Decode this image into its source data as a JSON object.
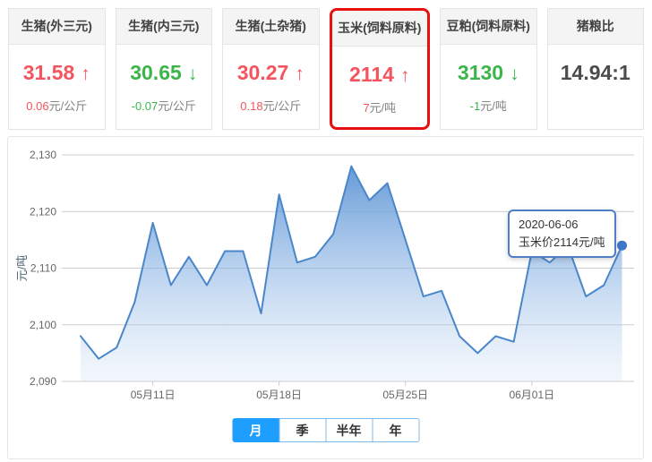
{
  "colors": {
    "up": "#f4545e",
    "down": "#3bb54a",
    "neutral": "#4c4c4c",
    "highlight_border": "#e8100c",
    "tab_active": "#1e9fff",
    "tab_border": "#7cb9e8",
    "chart_line": "#4a86ca",
    "chart_dot": "#3f78cb",
    "tooltip_border": "#4d7ec6",
    "grid_line": "#cccccc",
    "axis_text": "#666666",
    "y_axis_title_color": "#4e6470"
  },
  "cards": [
    {
      "key": "pig-outer-ternary",
      "title": "生猪(外三元)",
      "value": "31.58",
      "arrow": "↑",
      "trend": "up",
      "change": "0.06",
      "unit": "元/公斤",
      "highlighted": false
    },
    {
      "key": "pig-inner-ternary",
      "title": "生猪(内三元)",
      "value": "30.65",
      "arrow": "↓",
      "trend": "down",
      "change": "-0.07",
      "unit": "元/公斤",
      "highlighted": false
    },
    {
      "key": "pig-hybrid",
      "title": "生猪(土杂猪)",
      "value": "30.27",
      "arrow": "↑",
      "trend": "up",
      "change": "0.18",
      "unit": "元/公斤",
      "highlighted": false
    },
    {
      "key": "corn-feed",
      "title": "玉米(饲料原料)",
      "value": "2114",
      "arrow": "↑",
      "trend": "up",
      "change": "7",
      "unit": "元/吨",
      "highlighted": true
    },
    {
      "key": "soybean-meal-feed",
      "title": "豆粕(饲料原料)",
      "value": "3130",
      "arrow": "↓",
      "trend": "down",
      "change": "-1",
      "unit": "元/吨",
      "highlighted": false
    },
    {
      "key": "pig-grain-ratio",
      "title": "猪粮比",
      "value": "14.94:1",
      "arrow": "",
      "trend": "none",
      "change": "",
      "unit": "",
      "highlighted": false
    }
  ],
  "chart_data": {
    "type": "area",
    "series_name": "玉米价",
    "ylabel": "元/吨",
    "ylim": [
      2090,
      2130
    ],
    "yticks": [
      2090,
      2100,
      2110,
      2120,
      2130
    ],
    "grid": true,
    "legend": false,
    "x_tick_labels": [
      "05月11日",
      "05月18日",
      "05月25日",
      "06月01日"
    ],
    "x_tick_indices": [
      4,
      11,
      18,
      25
    ],
    "dates": [
      "2020-05-07",
      "2020-05-08",
      "2020-05-09",
      "2020-05-10",
      "2020-05-11",
      "2020-05-12",
      "2020-05-13",
      "2020-05-14",
      "2020-05-15",
      "2020-05-16",
      "2020-05-17",
      "2020-05-18",
      "2020-05-19",
      "2020-05-20",
      "2020-05-21",
      "2020-05-22",
      "2020-05-23",
      "2020-05-24",
      "2020-05-25",
      "2020-05-26",
      "2020-05-27",
      "2020-05-28",
      "2020-05-29",
      "2020-05-30",
      "2020-05-31",
      "2020-06-01",
      "2020-06-02",
      "2020-06-03",
      "2020-06-04",
      "2020-06-05",
      "2020-06-06"
    ],
    "values": [
      2098,
      2094,
      2096,
      2104,
      2118,
      2107,
      2112,
      2107,
      2113,
      2113,
      2102,
      2123,
      2111,
      2112,
      2116,
      2128,
      2122,
      2125,
      2115,
      2105,
      2106,
      2098,
      2095,
      2098,
      2097,
      2113,
      2111,
      2114,
      2105,
      2107,
      2114
    ],
    "marked_point": {
      "date": "2020-06-06",
      "value": 2114
    }
  },
  "tooltip": {
    "line1": "2020-06-06",
    "line2": "玉米价2114元/吨"
  },
  "tabs": [
    {
      "key": "month",
      "label": "月",
      "active": true
    },
    {
      "key": "quarter",
      "label": "季",
      "active": false
    },
    {
      "key": "half-year",
      "label": "半年",
      "active": false
    },
    {
      "key": "year",
      "label": "年",
      "active": false
    }
  ]
}
